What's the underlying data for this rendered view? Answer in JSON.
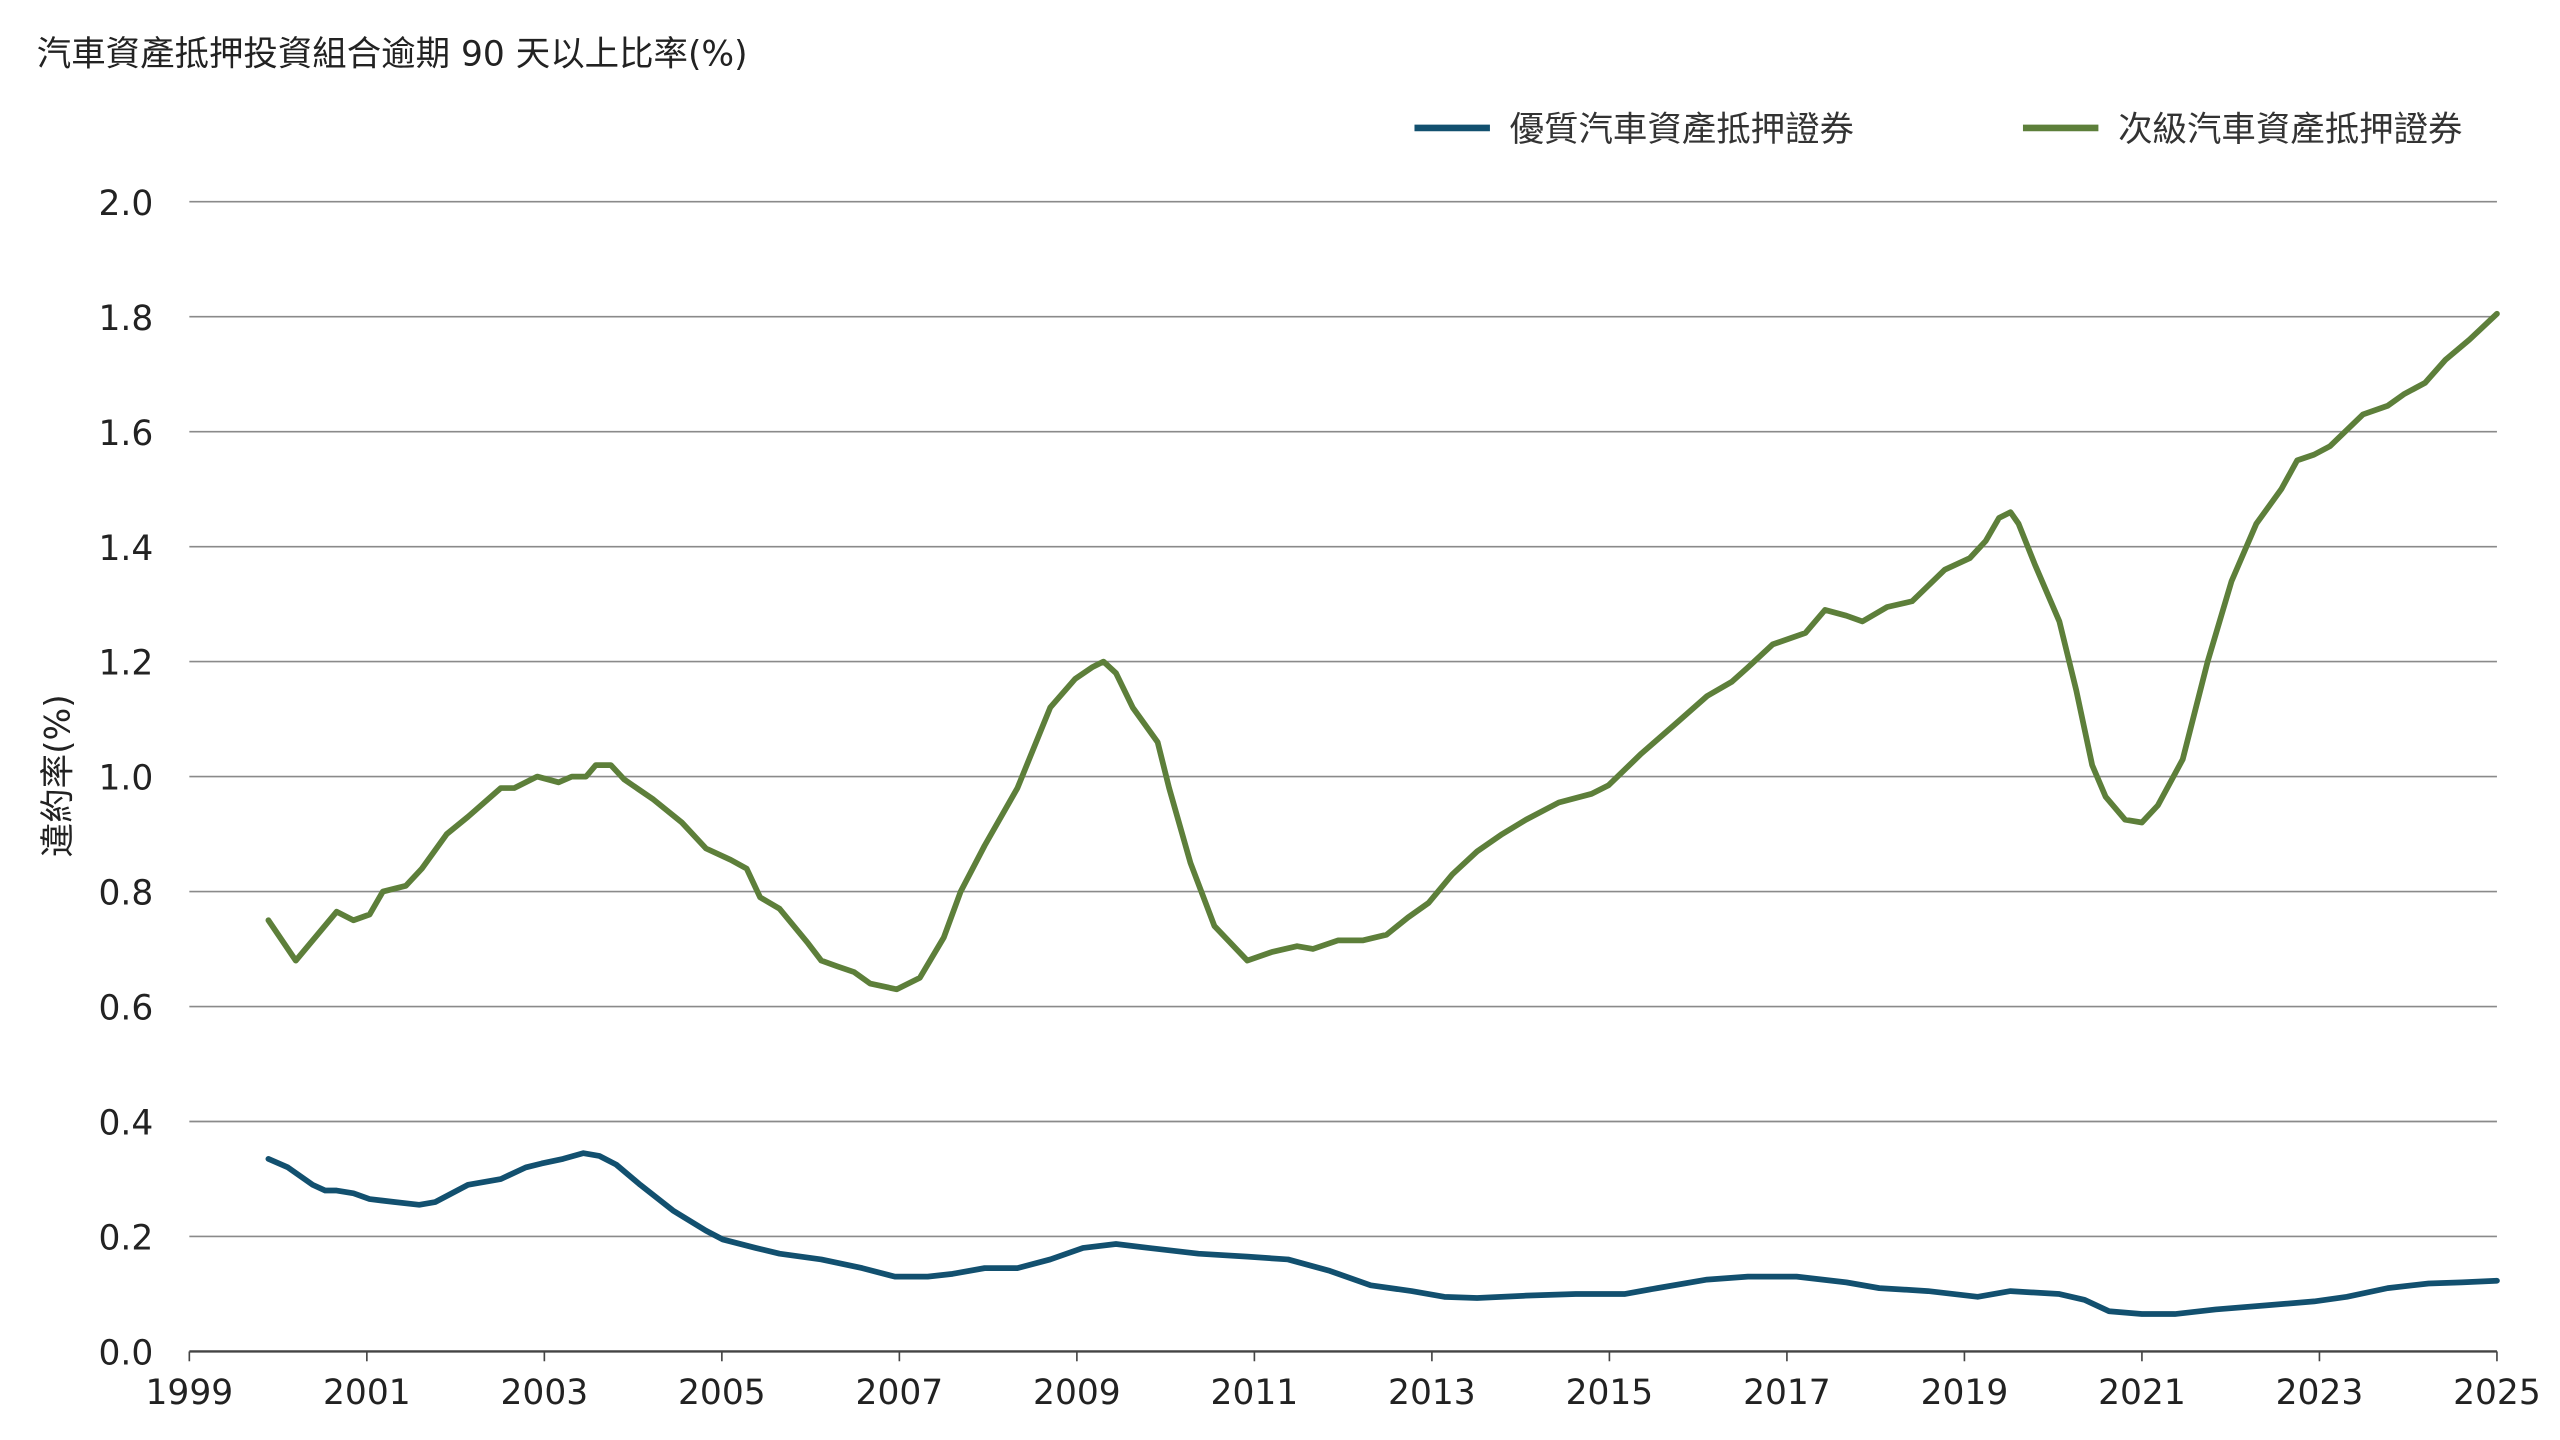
{
  "chart_data": {
    "type": "line",
    "title": "汽車資產抵押投資組合逾期 90 天以上比率(%)",
    "xlabel": "",
    "ylabel": "違約率(%)",
    "xlim": [
      1999,
      2025
    ],
    "ylim": [
      0,
      2.0
    ],
    "grid": true,
    "legend_position": "top-right",
    "x_ticks": [
      "1999",
      "2001",
      "2003",
      "2005",
      "2007",
      "2009",
      "2011",
      "2013",
      "2015",
      "2017",
      "2019",
      "2021",
      "2023",
      "2025"
    ],
    "y_ticks": [
      "0.0",
      "0.2",
      "0.4",
      "0.6",
      "0.8",
      "1.0",
      "1.2",
      "1.4",
      "1.6",
      "1.8",
      "2.0"
    ],
    "series": [
      {
        "name": "優質汽車資產抵押證券",
        "color": "#12506f",
        "points": [
          [
            1999.89,
            0.335
          ],
          [
            2000.11,
            0.32
          ],
          [
            2000.39,
            0.29
          ],
          [
            2000.53,
            0.28
          ],
          [
            2000.66,
            0.28
          ],
          [
            2000.85,
            0.275
          ],
          [
            2001.03,
            0.265
          ],
          [
            2001.31,
            0.26
          ],
          [
            2001.59,
            0.255
          ],
          [
            2001.77,
            0.26
          ],
          [
            2002.14,
            0.29
          ],
          [
            2002.51,
            0.3
          ],
          [
            2002.79,
            0.32
          ],
          [
            2002.97,
            0.327
          ],
          [
            2003.21,
            0.335
          ],
          [
            2003.44,
            0.345
          ],
          [
            2003.62,
            0.34
          ],
          [
            2003.81,
            0.325
          ],
          [
            2004.08,
            0.29
          ],
          [
            2004.45,
            0.245
          ],
          [
            2004.82,
            0.21
          ],
          [
            2005.01,
            0.195
          ],
          [
            2005.38,
            0.18
          ],
          [
            2005.65,
            0.17
          ],
          [
            2006.12,
            0.16
          ],
          [
            2006.58,
            0.145
          ],
          [
            2006.95,
            0.13
          ],
          [
            2007.32,
            0.13
          ],
          [
            2007.6,
            0.135
          ],
          [
            2007.96,
            0.145
          ],
          [
            2008.33,
            0.145
          ],
          [
            2008.7,
            0.16
          ],
          [
            2009.07,
            0.18
          ],
          [
            2009.44,
            0.187
          ],
          [
            2009.81,
            0.18
          ],
          [
            2010.37,
            0.17
          ],
          [
            2010.92,
            0.165
          ],
          [
            2011.38,
            0.16
          ],
          [
            2011.85,
            0.14
          ],
          [
            2012.31,
            0.115
          ],
          [
            2012.77,
            0.105
          ],
          [
            2013.14,
            0.095
          ],
          [
            2013.51,
            0.093
          ],
          [
            2014.06,
            0.097
          ],
          [
            2014.62,
            0.1
          ],
          [
            2015.17,
            0.1
          ],
          [
            2015.54,
            0.11
          ],
          [
            2016.1,
            0.125
          ],
          [
            2016.56,
            0.13
          ],
          [
            2017.11,
            0.13
          ],
          [
            2017.67,
            0.12
          ],
          [
            2018.04,
            0.11
          ],
          [
            2018.59,
            0.105
          ],
          [
            2019.15,
            0.095
          ],
          [
            2019.52,
            0.105
          ],
          [
            2020.07,
            0.1
          ],
          [
            2020.35,
            0.09
          ],
          [
            2020.63,
            0.07
          ],
          [
            2021.0,
            0.065
          ],
          [
            2021.37,
            0.065
          ],
          [
            2021.83,
            0.073
          ],
          [
            2022.38,
            0.08
          ],
          [
            2022.94,
            0.087
          ],
          [
            2023.31,
            0.095
          ],
          [
            2023.77,
            0.11
          ],
          [
            2024.23,
            0.118
          ],
          [
            2024.6,
            0.12
          ],
          [
            2025.0,
            0.123
          ]
        ]
      },
      {
        "name": "次級汽車資產抵押證券",
        "color": "#5d7f3a",
        "points": [
          [
            1999.89,
            0.75
          ],
          [
            2000.2,
            0.68
          ],
          [
            2000.66,
            0.765
          ],
          [
            2000.85,
            0.75
          ],
          [
            2001.03,
            0.76
          ],
          [
            2001.18,
            0.8
          ],
          [
            2001.44,
            0.81
          ],
          [
            2001.62,
            0.84
          ],
          [
            2001.9,
            0.9
          ],
          [
            2002.14,
            0.93
          ],
          [
            2002.51,
            0.98
          ],
          [
            2002.66,
            0.98
          ],
          [
            2002.92,
            1.0
          ],
          [
            2003.16,
            0.99
          ],
          [
            2003.31,
            1.0
          ],
          [
            2003.47,
            1.0
          ],
          [
            2003.58,
            1.02
          ],
          [
            2003.75,
            1.02
          ],
          [
            2003.9,
            0.995
          ],
          [
            2004.23,
            0.96
          ],
          [
            2004.55,
            0.92
          ],
          [
            2004.82,
            0.875
          ],
          [
            2005.1,
            0.855
          ],
          [
            2005.28,
            0.84
          ],
          [
            2005.43,
            0.79
          ],
          [
            2005.65,
            0.77
          ],
          [
            2005.97,
            0.71
          ],
          [
            2006.12,
            0.68
          ],
          [
            2006.3,
            0.67
          ],
          [
            2006.49,
            0.66
          ],
          [
            2006.67,
            0.64
          ],
          [
            2006.97,
            0.63
          ],
          [
            2007.23,
            0.65
          ],
          [
            2007.5,
            0.72
          ],
          [
            2007.69,
            0.8
          ],
          [
            2007.96,
            0.88
          ],
          [
            2008.33,
            0.98
          ],
          [
            2008.7,
            1.12
          ],
          [
            2008.98,
            1.17
          ],
          [
            2009.17,
            1.19
          ],
          [
            2009.3,
            1.2
          ],
          [
            2009.44,
            1.18
          ],
          [
            2009.63,
            1.12
          ],
          [
            2009.91,
            1.06
          ],
          [
            2010.04,
            0.98
          ],
          [
            2010.28,
            0.85
          ],
          [
            2010.55,
            0.74
          ],
          [
            2010.92,
            0.68
          ],
          [
            2011.2,
            0.695
          ],
          [
            2011.48,
            0.705
          ],
          [
            2011.66,
            0.7
          ],
          [
            2011.94,
            0.715
          ],
          [
            2012.22,
            0.715
          ],
          [
            2012.49,
            0.725
          ],
          [
            2012.73,
            0.755
          ],
          [
            2012.96,
            0.78
          ],
          [
            2013.23,
            0.83
          ],
          [
            2013.51,
            0.87
          ],
          [
            2013.79,
            0.9
          ],
          [
            2014.06,
            0.925
          ],
          [
            2014.43,
            0.955
          ],
          [
            2014.8,
            0.97
          ],
          [
            2014.99,
            0.985
          ],
          [
            2015.36,
            1.04
          ],
          [
            2015.73,
            1.09
          ],
          [
            2016.1,
            1.14
          ],
          [
            2016.38,
            1.165
          ],
          [
            2016.56,
            1.19
          ],
          [
            2016.84,
            1.23
          ],
          [
            2017.21,
            1.25
          ],
          [
            2017.43,
            1.29
          ],
          [
            2017.67,
            1.28
          ],
          [
            2017.85,
            1.27
          ],
          [
            2018.13,
            1.295
          ],
          [
            2018.41,
            1.305
          ],
          [
            2018.78,
            1.36
          ],
          [
            2019.06,
            1.38
          ],
          [
            2019.24,
            1.41
          ],
          [
            2019.39,
            1.45
          ],
          [
            2019.52,
            1.46
          ],
          [
            2019.61,
            1.44
          ],
          [
            2019.79,
            1.37
          ],
          [
            2020.07,
            1.27
          ],
          [
            2020.26,
            1.15
          ],
          [
            2020.44,
            1.02
          ],
          [
            2020.59,
            0.965
          ],
          [
            2020.81,
            0.925
          ],
          [
            2021.0,
            0.92
          ],
          [
            2021.18,
            0.95
          ],
          [
            2021.46,
            1.03
          ],
          [
            2021.74,
            1.2
          ],
          [
            2022.01,
            1.34
          ],
          [
            2022.29,
            1.44
          ],
          [
            2022.57,
            1.5
          ],
          [
            2022.75,
            1.55
          ],
          [
            2022.94,
            1.56
          ],
          [
            2023.12,
            1.575
          ],
          [
            2023.49,
            1.63
          ],
          [
            2023.77,
            1.645
          ],
          [
            2023.95,
            1.665
          ],
          [
            2024.19,
            1.685
          ],
          [
            2024.42,
            1.725
          ],
          [
            2024.69,
            1.76
          ],
          [
            2025.0,
            1.805
          ]
        ]
      }
    ]
  }
}
